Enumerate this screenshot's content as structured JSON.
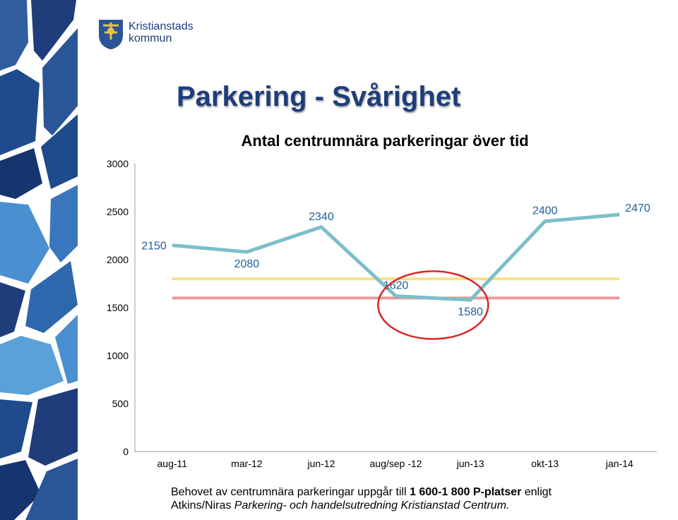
{
  "logo": {
    "line1": "Kristianstads",
    "line2": "kommun"
  },
  "slide_title": "Parkering - Svårighet",
  "chart_data": {
    "type": "line",
    "title": "Antal centrumnära parkeringar över tid",
    "categories": [
      "aug-11",
      "mar-12",
      "jun-12",
      "aug/sep -12",
      "jun-13",
      "okt-13",
      "jan-14"
    ],
    "series": [
      {
        "values": [
          2150,
          2080,
          2340,
          1620,
          1580,
          2400,
          2470
        ],
        "color": "#7bbfc9"
      }
    ],
    "data_labels": [
      "2150",
      "2080",
      "2340",
      "1620",
      "1580",
      "2400",
      "2470"
    ],
    "reference_lines": [
      {
        "value": 1800,
        "color": "#f7e08c"
      },
      {
        "value": 1600,
        "color": "#e89a9a"
      }
    ],
    "highlight": {
      "categories": [
        "aug/sep -12",
        "jun-13"
      ],
      "color": "#d62828"
    },
    "ylim": [
      0,
      3000
    ],
    "yticks": [
      0,
      500,
      1000,
      1500,
      2000,
      2500,
      3000
    ],
    "grid": false,
    "label_color": "#1f5e99"
  },
  "footnote": {
    "part1": "Behovet av centrumnära parkeringar uppgår till ",
    "bold": "1 600-1 800 P-platser",
    "part2": " enligt",
    "line2_prefix": "Atkins/Niras ",
    "line2_italic": "Parkering- och handelsutredning Kristianstad Centrum."
  }
}
